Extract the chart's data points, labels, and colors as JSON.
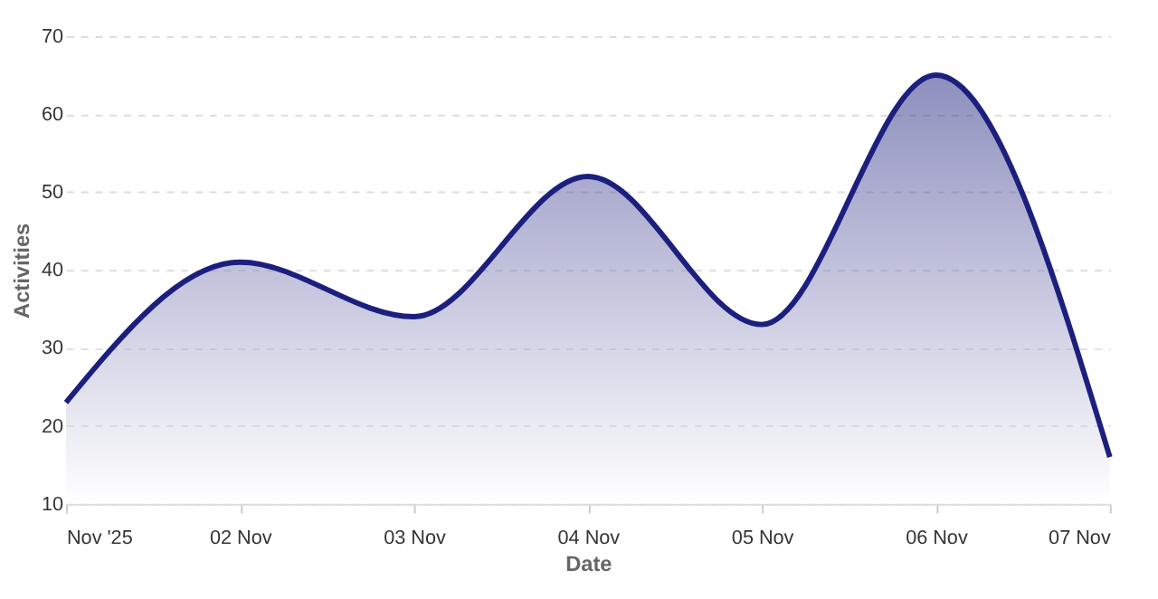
{
  "chart_data": {
    "type": "area",
    "xlabel": "Date",
    "ylabel": "Activities",
    "x": [
      "2025-11-01",
      "2025-11-02",
      "2025-11-03",
      "2025-11-04",
      "2025-11-05",
      "2025-11-06",
      "2025-11-07"
    ],
    "series": [
      {
        "color": "#1c1f7d",
        "values": [
          23,
          41,
          34,
          52,
          33,
          65,
          16
        ]
      }
    ],
    "xlim": [
      "2025-11-01",
      "2025-11-07"
    ],
    "xticks": [
      {
        "value": "2025-11-01",
        "label": "Nov '25"
      },
      {
        "value": "2025-11-02",
        "label": "02 Nov"
      },
      {
        "value": "2025-11-03",
        "label": "03 Nov"
      },
      {
        "value": "2025-11-04",
        "label": "04 Nov"
      },
      {
        "value": "2025-11-05",
        "label": "05 Nov"
      },
      {
        "value": "2025-11-06",
        "label": "06 Nov"
      },
      {
        "value": "2025-11-07",
        "label": "07 Nov"
      }
    ],
    "ylim": [
      10,
      70
    ],
    "yticks": [
      10,
      20,
      30,
      40,
      50,
      60,
      70
    ],
    "grid": "y",
    "marker": "none",
    "line_style": "solid"
  }
}
